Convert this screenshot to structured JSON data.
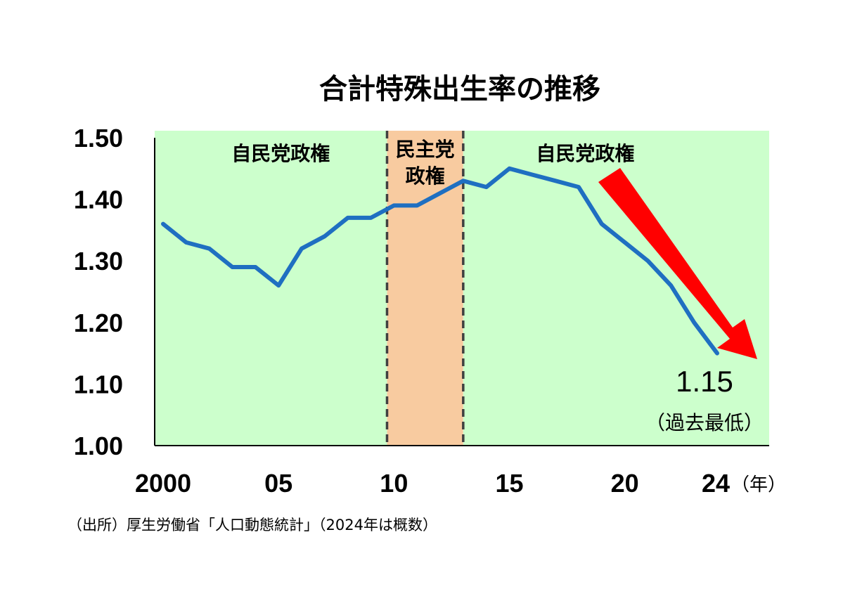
{
  "chart_data": {
    "type": "line",
    "title": "合計特殊出生率の推移",
    "xlabel": "",
    "x_unit": "（年）",
    "ylabel": "",
    "ylim": [
      1.0,
      1.5
    ],
    "xlim": [
      2000,
      2024
    ],
    "y_ticks": [
      "1.00",
      "1.10",
      "1.20",
      "1.30",
      "1.40",
      "1.50"
    ],
    "x_ticks": [
      {
        "value": 2000,
        "label": "2000"
      },
      {
        "value": 2005,
        "label": "05"
      },
      {
        "value": 2010,
        "label": "10"
      },
      {
        "value": 2015,
        "label": "15"
      },
      {
        "value": 2020,
        "label": "20"
      },
      {
        "value": 2024,
        "label": "24"
      }
    ],
    "grid": false,
    "series": [
      {
        "color": "#1f6fc1",
        "x": [
          2000,
          2001,
          2002,
          2003,
          2004,
          2005,
          2006,
          2007,
          2008,
          2009,
          2010,
          2011,
          2012,
          2013,
          2014,
          2015,
          2016,
          2017,
          2018,
          2019,
          2020,
          2021,
          2022,
          2023,
          2024
        ],
        "values": [
          1.36,
          1.33,
          1.32,
          1.29,
          1.29,
          1.26,
          1.32,
          1.34,
          1.37,
          1.37,
          1.39,
          1.39,
          1.41,
          1.43,
          1.42,
          1.45,
          1.44,
          1.43,
          1.42,
          1.36,
          1.33,
          1.3,
          1.26,
          1.2,
          1.15
        ]
      }
    ],
    "periods": [
      {
        "label_lines": [
          "自民党政権"
        ],
        "start": 2000,
        "end": 2009.7,
        "color": "#ccffcc"
      },
      {
        "label_lines": [
          "民主党",
          "政権"
        ],
        "start": 2009.7,
        "end": 2013.0,
        "color": "#f8cba0"
      },
      {
        "label_lines": [
          "自民党政権"
        ],
        "start": 2013.0,
        "end": 2024,
        "color": "#ccffcc"
      }
    ],
    "annotations": {
      "last_value": "1.15",
      "last_note": "（過去最低）",
      "trend_arrow_color": "#ff0000"
    },
    "source": "（出所）厚生労働省「人口動態統計」（2024年は概数）"
  }
}
